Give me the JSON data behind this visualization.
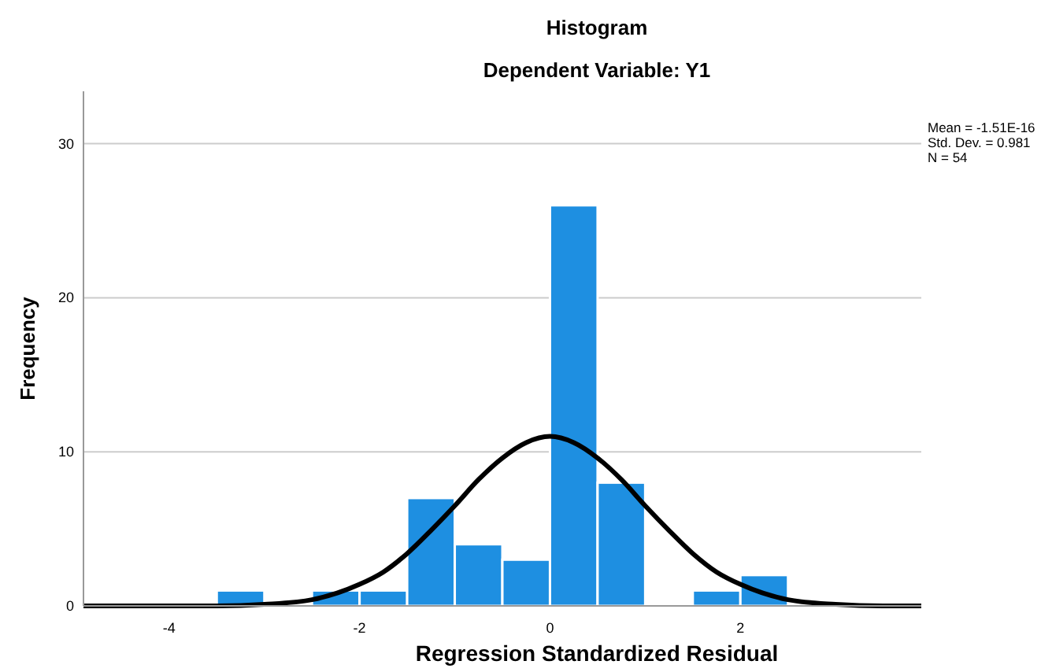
{
  "chart_data": {
    "type": "histogram",
    "title": "Histogram",
    "subtitle": "Dependent Variable: Y1",
    "xlabel": "Regression Standardized Residual",
    "ylabel": "Frequency",
    "xlim": [
      -4.9,
      3.9
    ],
    "xticks": [
      -4,
      -2,
      0,
      2
    ],
    "ylim": [
      0,
      33.4
    ],
    "yticks": [
      0,
      10,
      20,
      30
    ],
    "grid": "y",
    "annotations": [
      "Mean = -1.51E-16",
      "Std. Dev. = 0.981",
      "N = 54"
    ],
    "series": [
      {
        "color": "#1e8fe1",
        "bins": [
          -3.5,
          -3,
          -2.5,
          -2,
          -1.5,
          -1,
          -0.5,
          0,
          0.5,
          1,
          1.5,
          2,
          2.5
        ],
        "values": [
          1,
          0,
          1,
          1,
          7,
          4,
          3,
          26,
          8,
          0,
          1,
          2
        ]
      },
      {
        "type": "line",
        "color": "#000000",
        "x": [
          -4.9,
          -4,
          -3.5,
          -3,
          -2.5,
          -2,
          -1.75,
          -1.5,
          -1.25,
          -1,
          -0.75,
          -0.5,
          -0.25,
          0,
          0.25,
          0.5,
          0.75,
          1,
          1.25,
          1.5,
          1.75,
          2,
          2.5,
          3,
          3.5,
          3.9
        ],
        "values": [
          0,
          0,
          0,
          0.1,
          0.4,
          1.4,
          2.2,
          3.4,
          4.9,
          6.5,
          8.2,
          9.6,
          10.6,
          11,
          10.6,
          9.6,
          8.2,
          6.5,
          4.9,
          3.4,
          2.2,
          1.4,
          0.4,
          0.1,
          0,
          0
        ]
      }
    ]
  }
}
